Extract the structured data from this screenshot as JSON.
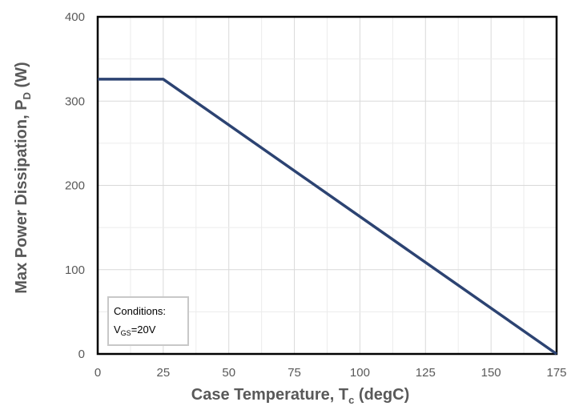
{
  "chart_data": {
    "type": "line",
    "title": "",
    "xlabel": {
      "main": "Case Temperature, T",
      "sub": "c",
      "suffix": " (degC)"
    },
    "ylabel": {
      "main": "Max Power Dissipation, P",
      "sub": "D",
      "suffix": " (W)"
    },
    "xlim": [
      0,
      175
    ],
    "ylim": [
      0,
      400
    ],
    "xticks": [
      0,
      25,
      50,
      75,
      100,
      125,
      150,
      175
    ],
    "yticks": [
      0,
      100,
      200,
      300,
      400
    ],
    "xtick_labels": [
      "0",
      "25",
      "50",
      "75",
      "100",
      "125",
      "150",
      "175"
    ],
    "ytick_labels": [
      "0",
      "100",
      "200",
      "300",
      "400"
    ],
    "grid": true,
    "legend": "none",
    "series": [
      {
        "color": "#2c4372",
        "x": [
          0,
          25,
          175
        ],
        "y": [
          326,
          326,
          0
        ]
      }
    ],
    "annotations": {
      "conditions": {
        "title": "Conditions:",
        "var_main": "V",
        "var_sub": "GS",
        "var_value": "=20V"
      }
    }
  }
}
